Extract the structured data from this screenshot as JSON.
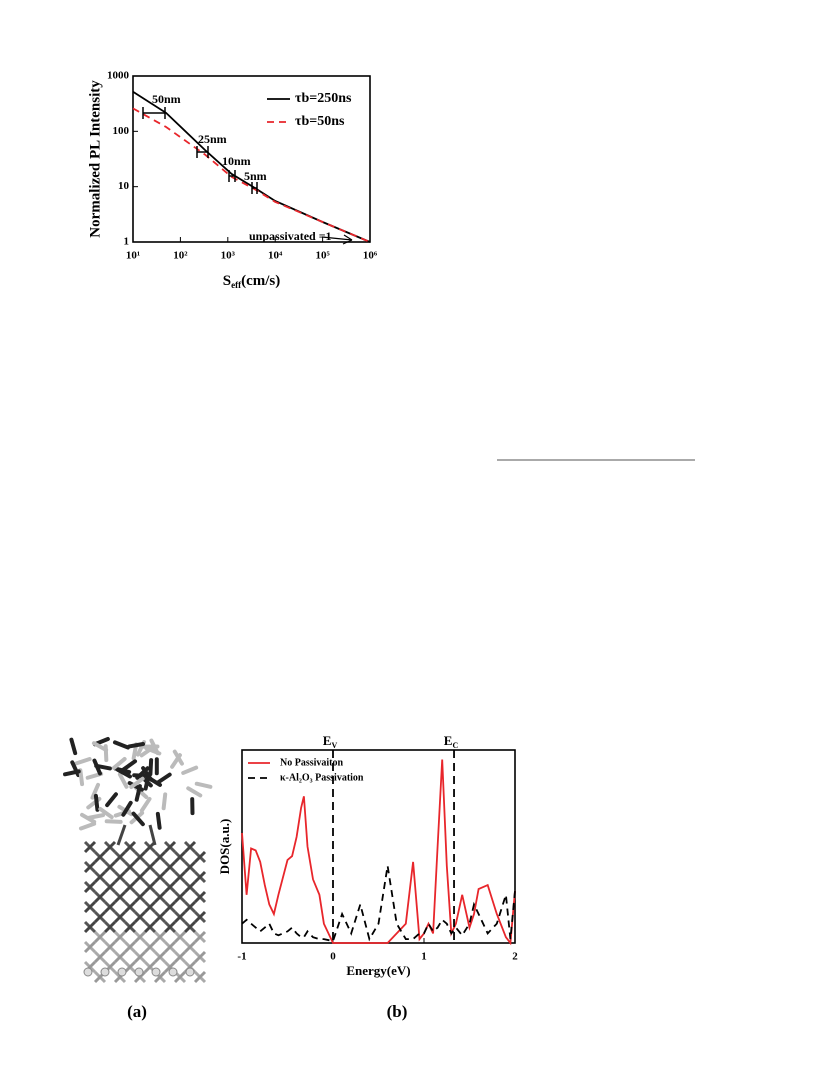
{
  "chart_data": [
    {
      "type": "line",
      "y_label": "Normalized PL Intensity",
      "x_label": "S",
      "x_label_sub": "eff",
      "x_label_rest": "(cm/s)",
      "xlog": true,
      "ylog": true,
      "x": [
        10,
        50,
        330,
        1200,
        3700,
        10000,
        100000,
        1000000
      ],
      "series": [
        {
          "name": "τb=250ns",
          "color": "#000000",
          "dash": false,
          "values": [
            520,
            215,
            46,
            17,
            9.5,
            5.5,
            2.3,
            1
          ]
        },
        {
          "name": "τb=50ns",
          "color": "#e8262b",
          "dash": true,
          "values": [
            260,
            120,
            38,
            15,
            9,
            5.3,
            2.3,
            1
          ]
        }
      ],
      "xlim": [
        10,
        1000000
      ],
      "xticks": [
        {
          "value": 10,
          "label": "10¹"
        },
        {
          "value": 100,
          "label": "10²"
        },
        {
          "value": 1000,
          "label": "10³"
        },
        {
          "value": 10000,
          "label": "10⁴"
        },
        {
          "value": 100000,
          "label": "10⁵"
        },
        {
          "value": 1000000,
          "label": "10⁶"
        }
      ],
      "ylim": [
        1,
        1000
      ],
      "yticks": [
        1,
        10,
        100,
        1000
      ],
      "annotations": [
        "50nm",
        "25nm",
        "10nm",
        "5nm",
        "unpassivated =1"
      ]
    },
    {
      "type": "line",
      "y_label": "DOS(a.u.)",
      "x_label": "Energy(eV)",
      "x": [
        -1,
        -0.95,
        -0.9,
        -0.85,
        -0.8,
        -0.75,
        -0.7,
        -0.65,
        -0.6,
        -0.5,
        -0.45,
        -0.4,
        -0.35,
        -0.32,
        -0.28,
        -0.22,
        -0.15,
        -0.1,
        0,
        0.1,
        0.2,
        0.3,
        0.4,
        0.5,
        0.6,
        0.7,
        0.8,
        0.88,
        0.95,
        1.0,
        1.05,
        1.1,
        1.15,
        1.2,
        1.25,
        1.3,
        1.35,
        1.42,
        1.5,
        1.55,
        1.6,
        1.7,
        1.8,
        1.9,
        1.95,
        2
      ],
      "series": [
        {
          "name": "No Passivaiton",
          "color": "#e8262b",
          "dash": false,
          "values": [
            0.57,
            0.25,
            0.49,
            0.48,
            0.42,
            0.3,
            0.2,
            0.15,
            0.25,
            0.43,
            0.45,
            0.55,
            0.7,
            0.76,
            0.5,
            0.33,
            0.25,
            0.1,
            0,
            0,
            0,
            0,
            0,
            0,
            0,
            0.05,
            0.1,
            0.42,
            0.02,
            0.05,
            0.1,
            0.05,
            0.5,
            0.95,
            0.4,
            0.05,
            0.1,
            0.25,
            0.08,
            0.15,
            0.28,
            0.3,
            0.15,
            0.03,
            0,
            0.27
          ]
        },
        {
          "name": "κ-Al₂O₃ Passivation",
          "color": "#000000",
          "dash": true,
          "values": [
            0.1,
            0.12,
            0.1,
            0.08,
            0.06,
            0.08,
            0.1,
            0.05,
            0.04,
            0.06,
            0.08,
            0.05,
            0.03,
            0.03,
            0.06,
            0.03,
            0.02,
            0.02,
            0.01,
            0.15,
            0.05,
            0.2,
            0.02,
            0.1,
            0.4,
            0.1,
            0.02,
            0.02,
            0.05,
            0.05,
            0.1,
            0.06,
            0.08,
            0.12,
            0.1,
            0.05,
            0.08,
            0.04,
            0.1,
            0.2,
            0.15,
            0.05,
            0.1,
            0.25,
            0.02,
            0.27
          ]
        }
      ],
      "xlim": [
        -1,
        2
      ],
      "xticks": [
        -1,
        0,
        1,
        2
      ],
      "ylim": [
        0,
        1
      ],
      "vlines": [
        {
          "x": 0,
          "text": "E",
          "sub": "V"
        },
        {
          "x": 1.33,
          "text": "E",
          "sub": "C"
        }
      ]
    }
  ],
  "captions": [
    "(a)",
    "(b)"
  ]
}
